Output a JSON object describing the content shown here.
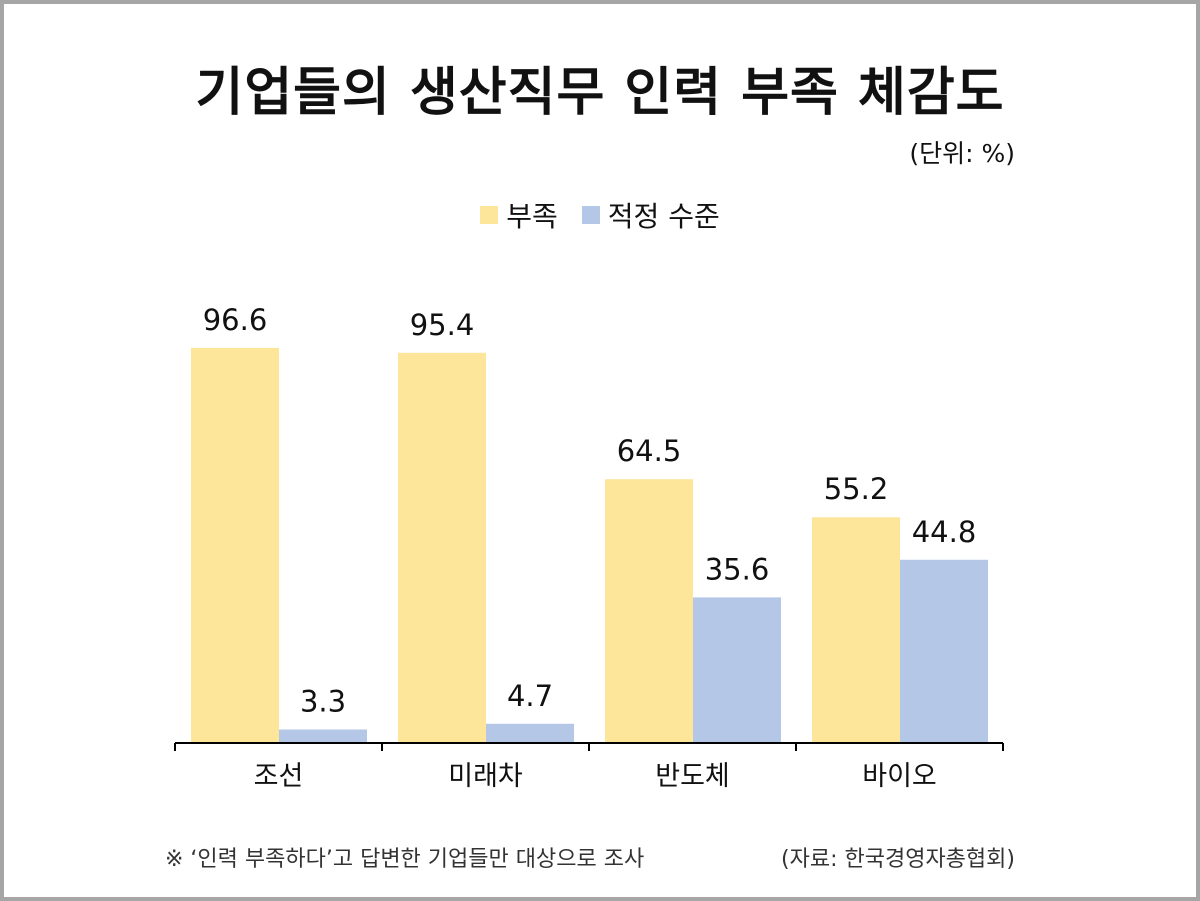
{
  "colors": {
    "frame": "#a6a6a6",
    "shortage": "#fde59a",
    "adequate": "#b4c7e7",
    "axis": "#000000"
  },
  "title": "기업들의 생산직무 인력 부족 체감도",
  "unit": "(단위: %)",
  "footnote": "※ ‘인력 부족하다’고 답변한 기업들만 대상으로 조사",
  "source": "(자료: 한국경영자총협회)",
  "chart_data": {
    "type": "bar",
    "categories": [
      "조선",
      "미래차",
      "반도체",
      "바이오"
    ],
    "series": [
      {
        "name": "부족",
        "values": [
          96.6,
          95.4,
          64.5,
          55.2
        ],
        "labels": [
          "96.6",
          "95.4",
          "64.5",
          "55.2"
        ],
        "color": "#fde59a"
      },
      {
        "name": "적정 수준",
        "values": [
          3.3,
          4.7,
          35.6,
          44.8
        ],
        "labels": [
          "3.3",
          "4.7",
          "35.6",
          "44.8"
        ],
        "color": "#b4c7e7"
      }
    ],
    "ylim": [
      0,
      100
    ],
    "grid": false,
    "legend_position": "top-center"
  }
}
